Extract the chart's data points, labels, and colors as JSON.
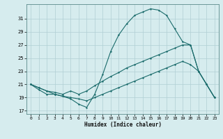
{
  "title": "",
  "xlabel": "Humidex (Indice chaleur)",
  "ylabel": "",
  "bg_color": "#d6ecee",
  "grid_color": "#b0cfd4",
  "line_color": "#1a6b6b",
  "x_ticks": [
    0,
    1,
    2,
    3,
    4,
    5,
    6,
    7,
    8,
    9,
    10,
    11,
    12,
    13,
    14,
    15,
    16,
    17,
    18,
    19,
    20,
    21,
    22,
    23
  ],
  "y_ticks": [
    17,
    19,
    21,
    23,
    25,
    27,
    29,
    31
  ],
  "xlim": [
    -0.5,
    23.5
  ],
  "ylim": [
    16.5,
    33.2
  ],
  "line1_x": [
    0,
    1,
    2,
    3,
    4,
    5,
    6,
    7,
    8,
    9,
    10,
    11,
    12,
    13,
    14,
    15,
    16,
    17,
    18,
    19,
    20,
    21,
    22,
    23
  ],
  "line1_y": [
    21.0,
    20.2,
    19.5,
    19.5,
    19.2,
    18.8,
    18.0,
    17.5,
    19.5,
    22.5,
    26.0,
    28.5,
    30.2,
    31.5,
    32.0,
    32.5,
    32.3,
    31.5,
    29.5,
    27.5,
    27.0,
    23.0,
    21.0,
    19.0
  ],
  "line2_x": [
    0,
    1,
    2,
    3,
    4,
    5,
    6,
    7,
    8,
    9,
    10,
    11,
    12,
    13,
    14,
    15,
    16,
    17,
    18,
    19,
    20,
    21,
    22,
    23
  ],
  "line2_y": [
    21.0,
    20.5,
    20.0,
    19.8,
    19.5,
    20.0,
    19.5,
    20.0,
    20.8,
    21.5,
    22.2,
    22.8,
    23.5,
    24.0,
    24.5,
    25.0,
    25.5,
    26.0,
    26.5,
    27.0,
    27.0,
    23.0,
    21.0,
    19.0
  ],
  "line3_x": [
    0,
    1,
    2,
    3,
    4,
    5,
    6,
    7,
    8,
    9,
    10,
    11,
    12,
    13,
    14,
    15,
    16,
    17,
    18,
    19,
    20,
    21,
    22,
    23
  ],
  "line3_y": [
    21.0,
    20.5,
    20.0,
    19.5,
    19.2,
    19.0,
    18.8,
    18.5,
    19.0,
    19.5,
    20.0,
    20.5,
    21.0,
    21.5,
    22.0,
    22.5,
    23.0,
    23.5,
    24.0,
    24.5,
    24.0,
    23.0,
    21.0,
    19.0
  ]
}
